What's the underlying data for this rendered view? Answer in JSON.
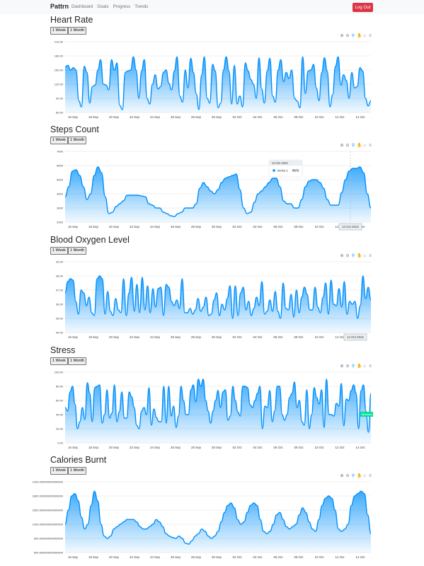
{
  "nav": {
    "brand": "Pattrn",
    "links": [
      "Dashboard",
      "Goals",
      "Progress",
      "Trends"
    ],
    "logout": "Log Out"
  },
  "range_buttons": [
    "1 Week",
    "1 Month"
  ],
  "toolbar_icons": [
    "zoom-in-icon",
    "zoom-out-icon",
    "zoom-selection-icon",
    "pan-icon",
    "reset-zoom-icon",
    "menu-icon"
  ],
  "x_ticks": [
    "16 Sep",
    "18 Sep",
    "20 Sep",
    "22 Sep",
    "24 Sep",
    "26 Sep",
    "28 Sep",
    "30 Sep",
    "02 Oct",
    "04 Oct",
    "06 Oct",
    "08 Oct",
    "10 Oct",
    "12 Oct",
    "14 Oct"
  ],
  "colors": {
    "series": "#008ffb",
    "grid": "#e0e0e0",
    "tick": "#373d3f",
    "navbar": "#f8f9fa",
    "logout": "#dc3545",
    "marker_label": "#00e396"
  },
  "chart_data": [
    {
      "type": "area",
      "title": "Heart Rate",
      "x_range": [
        "2022-09-14",
        "2022-10-15"
      ],
      "ylim": [
        60,
        210
      ],
      "y_ticks": [
        "210.00",
        "180.00",
        "150.00",
        "120.00",
        "90.00",
        "60.00"
      ],
      "series": [
        {
          "values": [
            157,
            160,
            150,
            155,
            150,
            85,
            72,
            158,
            145,
            80,
            115,
            118,
            150,
            172,
            120,
            118,
            108,
            172,
            150,
            165,
            75,
            66,
            145,
            148,
            150,
            178,
            150,
            90,
            148,
            172,
            90,
            78,
            120,
            140,
            110,
            115,
            145,
            150,
            122,
            108,
            148,
            178,
            95,
            82,
            150,
            112,
            175,
            145,
            100,
            66,
            140,
            178,
            90,
            80,
            162,
            148,
            70,
            80,
            150,
            178,
            148,
            78,
            160,
            78,
            95,
            72,
            165,
            148,
            130,
            120,
            90,
            176,
            110,
            80,
            148,
            175,
            95,
            82,
            150,
            172,
            125,
            145,
            132,
            150,
            90,
            84,
            70,
            178,
            100,
            148,
            150,
            162,
            112,
            85,
            145,
            176,
            148,
            72,
            98,
            158,
            178,
            118,
            140,
            128,
            90,
            145,
            112,
            115,
            155,
            148,
            90,
            74,
            85
          ]
        }
      ]
    },
    {
      "type": "area",
      "title": "Steps Count",
      "x_range": [
        "2022-09-14",
        "2022-10-15"
      ],
      "ylim": [
        2000,
        7000
      ],
      "y_ticks": [
        "7000",
        "6000",
        "5000",
        "4000",
        "3000",
        "2000"
      ],
      "tooltip": {
        "date": "13 Oct 2022",
        "series": "series-1",
        "value": "5672"
      },
      "x_crosshair_label": "13 Oct 2022",
      "series": [
        {
          "values": [
            3800,
            4500,
            5600,
            5700,
            5300,
            4500,
            3600,
            4000,
            5300,
            5900,
            5500,
            3800,
            2600,
            2700,
            3100,
            3300,
            3500,
            3900,
            3900,
            3900,
            3900,
            3850,
            3800,
            3300,
            3200,
            3000,
            3000,
            2700,
            2600,
            2450,
            2400,
            2600,
            2700,
            3000,
            3000,
            3000,
            3300,
            4400,
            4800,
            4500,
            4200,
            4000,
            4300,
            4800,
            5100,
            5200,
            5300,
            5400,
            4300,
            3000,
            2600,
            2700,
            3400,
            4000,
            4200,
            4500,
            4800,
            5100,
            5100,
            4500,
            3500,
            3300,
            3300,
            3000,
            3000,
            3600,
            4500,
            4900,
            5000,
            5000,
            4800,
            4400,
            3600,
            3200,
            3200,
            3200,
            4100,
            5000,
            5600,
            5800,
            5800,
            5900,
            5500,
            4000,
            3000
          ]
        }
      ]
    },
    {
      "type": "area",
      "title": "Blood Oxygen Level",
      "x_range": [
        "2022-09-14",
        "2022-10-15"
      ],
      "ylim": [
        94,
        99
      ],
      "y_ticks": [
        "99.00",
        "98.00",
        "97.00",
        "96.00",
        "95.00",
        "94.00"
      ],
      "x_crosshair_label": "14 Oct 2022",
      "series": [
        {
          "values": [
            96.8,
            97.6,
            97.8,
            97.7,
            96.2,
            95.3,
            97.0,
            96.8,
            95.9,
            96.5,
            95.4,
            95.2,
            97.8,
            98.0,
            97.8,
            95.3,
            96.9,
            95.5,
            95.2,
            96.4,
            95.6,
            95.4,
            97.8,
            95.2,
            96.8,
            97.9,
            95.5,
            97.4,
            95.4,
            97.9,
            95.6,
            97.3,
            95.4,
            97.1,
            95.8,
            97.1,
            97.2,
            95.2,
            97.4,
            97.2,
            96.2,
            95.9,
            96.3,
            95.7,
            97.8,
            95.4,
            95.4,
            95.7,
            95.3,
            95.6,
            96.4,
            95.5,
            95.8,
            96.5,
            95.2,
            95.3,
            96.3,
            96.8,
            95.2,
            96.0,
            95.6,
            96.4,
            97.3,
            95.0,
            97.3,
            95.2,
            96.8,
            97.2,
            95.6,
            96.2,
            95.2,
            95.7,
            96.5,
            95.9,
            97.6,
            95.3,
            95.5,
            96.3,
            95.5,
            96.9,
            95.5,
            95.0,
            97.5,
            95.7,
            95.6,
            96.7,
            95.1,
            97.0,
            95.4,
            96.5,
            97.2,
            96.7,
            95.6,
            95.6,
            97.2,
            95.8,
            95.4,
            96.5,
            97.5,
            95.3,
            97.7,
            96.0,
            95.9,
            97.1,
            95.8,
            97.6,
            95.3,
            96.2,
            96.0,
            96.2,
            95.0,
            95.9,
            98.0,
            96.4,
            97.2,
            96.3
          ]
        }
      ]
    },
    {
      "type": "area",
      "title": "Stress",
      "x_range": [
        "2022-09-14",
        "2022-10-15"
      ],
      "ylim": [
        0,
        100
      ],
      "y_ticks": [
        "100.00",
        "80.00",
        "60.00",
        "40.00",
        "20.00",
        "0.00"
      ],
      "marker_label": "Stressed",
      "series": [
        {
          "values": [
            50,
            45,
            72,
            80,
            55,
            20,
            30,
            50,
            33,
            85,
            70,
            30,
            78,
            80,
            82,
            28,
            40,
            75,
            35,
            42,
            82,
            30,
            44,
            72,
            35,
            35,
            72,
            65,
            50,
            25,
            20,
            45,
            50,
            40,
            78,
            25,
            48,
            36,
            30,
            30,
            80,
            28,
            80,
            38,
            52,
            22,
            38,
            80,
            60,
            40,
            40,
            75,
            82,
            58,
            90,
            80,
            90,
            60,
            45,
            28,
            45,
            60,
            74,
            50,
            72,
            75,
            32,
            38,
            80,
            60,
            44,
            38,
            80,
            80,
            78,
            54,
            50,
            60,
            70,
            80,
            20,
            52,
            50,
            74,
            30,
            45,
            80,
            80,
            40,
            32,
            40,
            64,
            70,
            86,
            50,
            60,
            30,
            25,
            75,
            20,
            40,
            78,
            64,
            55,
            75,
            22,
            90,
            40,
            40,
            38,
            56,
            52,
            84,
            24,
            62,
            60,
            74,
            82,
            70,
            20,
            74,
            82,
            45,
            15,
            70
          ]
        }
      ]
    },
    {
      "type": "area",
      "title": "Calories Burnt",
      "x_range": [
        "2022-09-14",
        "2022-10-15"
      ],
      "ylim": [
        600,
        2100
      ],
      "y_ticks": [
        "2100.000000000000000",
        "1800.000000000000000",
        "1500.000000000000000",
        "1200.000000000000000",
        "900.000000000000000",
        "600.000000000000000"
      ],
      "series": [
        {
          "values": [
            1200,
            1500,
            1800,
            1850,
            1700,
            1350,
            1100,
            1200,
            1600,
            1900,
            1700,
            1200,
            950,
            900,
            950,
            1100,
            1150,
            1200,
            1250,
            1300,
            1300,
            1300,
            1250,
            1150,
            1100,
            1100,
            1150,
            1200,
            1300,
            1250,
            1150,
            1000,
            950,
            920,
            900,
            950,
            900,
            800,
            780,
            850,
            950,
            1000,
            1100,
            1050,
            950,
            900,
            950,
            1050,
            1250,
            1450,
            1600,
            1650,
            1550,
            1300,
            1200,
            1250,
            1450,
            1600,
            1650,
            1600,
            1300,
            1050,
            1000,
            1050,
            1200,
            1400,
            1450,
            1300,
            1150,
            1100,
            1150,
            1200,
            1400,
            1550,
            1450,
            1250,
            1100,
            1050,
            1300,
            1600,
            1750,
            1800,
            1750,
            1500,
            1100,
            1050,
            1100,
            1200,
            1600,
            1800,
            1850,
            1900,
            1850,
            1400,
            1000
          ]
        }
      ]
    }
  ]
}
